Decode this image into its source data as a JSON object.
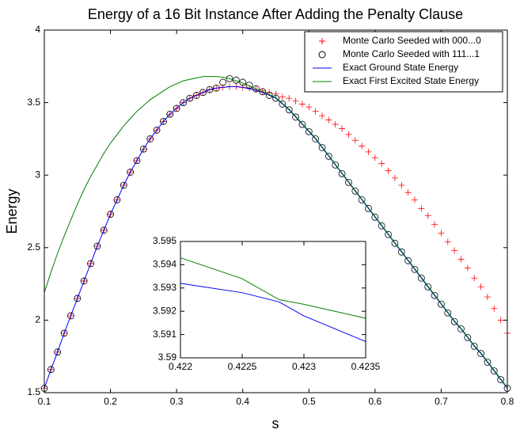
{
  "chart_data": [
    {
      "type": "line",
      "title": "Energy of a 16 Bit Instance After Adding the Penalty Clause",
      "xlabel": "s",
      "ylabel": "Energy",
      "xlim": [
        0.1,
        0.8
      ],
      "ylim": [
        1.5,
        4
      ],
      "xticks": [
        0.1,
        0.2,
        0.3,
        0.4,
        0.5,
        0.6,
        0.7,
        0.8
      ],
      "yticks": [
        1.5,
        2,
        2.5,
        3,
        3.5,
        4
      ],
      "legend": "upper right",
      "x": [
        0.1,
        0.11,
        0.12,
        0.13,
        0.14,
        0.15,
        0.16,
        0.17,
        0.18,
        0.19,
        0.2,
        0.21,
        0.22,
        0.23,
        0.24,
        0.25,
        0.26,
        0.27,
        0.28,
        0.29,
        0.3,
        0.31,
        0.32,
        0.33,
        0.34,
        0.35,
        0.36,
        0.37,
        0.38,
        0.39,
        0.4,
        0.41,
        0.42,
        0.43,
        0.44,
        0.45,
        0.46,
        0.47,
        0.48,
        0.49,
        0.5,
        0.51,
        0.52,
        0.53,
        0.54,
        0.55,
        0.56,
        0.57,
        0.58,
        0.59,
        0.6,
        0.61,
        0.62,
        0.63,
        0.64,
        0.65,
        0.66,
        0.67,
        0.68,
        0.69,
        0.7,
        0.71,
        0.72,
        0.73,
        0.74,
        0.75,
        0.76,
        0.77,
        0.78,
        0.79,
        0.8
      ],
      "series": [
        {
          "name": "Monte Carlo Seeded with 000...0",
          "color": "#ff0000",
          "marker": "plus",
          "values": [
            1.53,
            1.66,
            1.78,
            1.91,
            2.03,
            2.15,
            2.27,
            2.39,
            2.51,
            2.62,
            2.73,
            2.83,
            2.93,
            3.02,
            3.1,
            3.18,
            3.25,
            3.31,
            3.37,
            3.42,
            3.46,
            3.5,
            3.53,
            3.55,
            3.57,
            3.59,
            3.6,
            3.605,
            3.61,
            3.61,
            3.605,
            3.6,
            3.59,
            3.58,
            3.57,
            3.56,
            3.54,
            3.53,
            3.51,
            3.49,
            3.47,
            3.44,
            3.41,
            3.38,
            3.35,
            3.32,
            3.28,
            3.24,
            3.2,
            3.16,
            3.12,
            3.08,
            3.03,
            2.98,
            2.93,
            2.88,
            2.83,
            2.77,
            2.72,
            2.66,
            2.6,
            2.54,
            2.48,
            2.42,
            2.36,
            2.29,
            2.23,
            2.16,
            2.08,
            2.0,
            1.91
          ]
        },
        {
          "name": "Monte Carlo Seeded with 111...1",
          "color": "#000000",
          "marker": "circle",
          "values": [
            1.53,
            1.66,
            1.78,
            1.91,
            2.03,
            2.15,
            2.27,
            2.39,
            2.51,
            2.62,
            2.73,
            2.83,
            2.93,
            3.02,
            3.1,
            3.18,
            3.25,
            3.31,
            3.37,
            3.42,
            3.46,
            3.5,
            3.53,
            3.55,
            3.57,
            3.59,
            3.6,
            3.64,
            3.665,
            3.655,
            3.64,
            3.62,
            3.595,
            3.575,
            3.55,
            3.53,
            3.49,
            3.45,
            3.4,
            3.35,
            3.3,
            3.25,
            3.19,
            3.13,
            3.07,
            3.01,
            2.95,
            2.89,
            2.83,
            2.77,
            2.71,
            2.65,
            2.59,
            2.53,
            2.47,
            2.41,
            2.35,
            2.29,
            2.23,
            2.17,
            2.11,
            2.05,
            1.99,
            1.94,
            1.88,
            1.82,
            1.77,
            1.71,
            1.65,
            1.59,
            1.53
          ]
        },
        {
          "name": "Exact Ground State Energy",
          "color": "#0000ff",
          "values": [
            1.53,
            1.66,
            1.78,
            1.91,
            2.03,
            2.15,
            2.27,
            2.39,
            2.51,
            2.62,
            2.73,
            2.83,
            2.93,
            3.02,
            3.1,
            3.18,
            3.25,
            3.31,
            3.37,
            3.42,
            3.46,
            3.5,
            3.53,
            3.55,
            3.57,
            3.59,
            3.6,
            3.605,
            3.61,
            3.61,
            3.605,
            3.595,
            3.585,
            3.57,
            3.55,
            3.53,
            3.49,
            3.45,
            3.4,
            3.35,
            3.3,
            3.25,
            3.19,
            3.13,
            3.07,
            3.01,
            2.95,
            2.89,
            2.83,
            2.77,
            2.71,
            2.65,
            2.59,
            2.53,
            2.47,
            2.41,
            2.35,
            2.29,
            2.23,
            2.17,
            2.11,
            2.05,
            1.99,
            1.94,
            1.88,
            1.82,
            1.77,
            1.71,
            1.65,
            1.59,
            1.53
          ]
        },
        {
          "name": "Exact First Excited State Energy",
          "color": "#008000",
          "values": [
            2.19,
            2.33,
            2.46,
            2.58,
            2.69,
            2.8,
            2.9,
            2.99,
            3.07,
            3.15,
            3.22,
            3.28,
            3.34,
            3.39,
            3.44,
            3.48,
            3.52,
            3.55,
            3.58,
            3.61,
            3.63,
            3.65,
            3.66,
            3.67,
            3.68,
            3.68,
            3.68,
            3.675,
            3.665,
            3.65,
            3.635,
            3.615,
            3.595,
            3.575,
            3.555,
            3.535,
            3.495,
            3.455,
            3.405,
            3.355,
            3.305,
            3.255,
            3.195,
            3.135,
            3.075,
            3.015,
            2.955,
            2.895,
            2.835,
            2.775,
            2.715,
            2.655,
            2.595,
            2.535,
            2.475,
            2.415,
            2.355,
            2.295,
            2.235,
            2.175,
            2.115,
            2.055,
            1.995,
            1.945,
            1.885,
            1.825,
            1.775,
            1.715,
            1.655,
            1.595,
            1.535
          ]
        }
      ]
    },
    {
      "type": "line",
      "xlim": [
        0.422,
        0.4235
      ],
      "ylim": [
        3.59,
        3.595
      ],
      "xticks": [
        0.422,
        0.4225,
        0.423,
        0.4235
      ],
      "yticks": [
        3.59,
        3.591,
        3.592,
        3.593,
        3.594,
        3.595
      ],
      "x": [
        0.422,
        0.4225,
        0.4228,
        0.423,
        0.4235
      ],
      "series": [
        {
          "color": "#0000ff",
          "values": [
            3.5932,
            3.5928,
            3.5924,
            3.5918,
            3.5907
          ]
        },
        {
          "color": "#008000",
          "values": [
            3.5943,
            3.5934,
            3.5925,
            3.5923,
            3.5917
          ]
        }
      ]
    }
  ]
}
